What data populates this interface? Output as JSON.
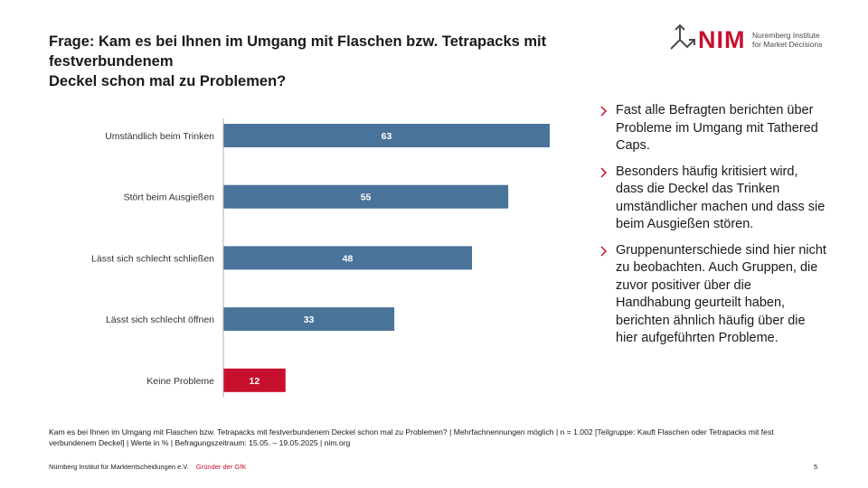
{
  "header": {
    "title_line1": "Frage: Kam es bei Ihnen im Umgang mit Flaschen bzw. Tetrapacks mit festverbundenem",
    "title_line2": "Deckel schon mal zu Problemen?"
  },
  "logo": {
    "wordmark": "NIM",
    "line1": "Nuremberg Institute",
    "line2": "for Market Decisions",
    "color": "#c8102e",
    "icon": "arrows-icon"
  },
  "chart_data": {
    "type": "bar",
    "orientation": "horizontal",
    "categories": [
      "Umständlich beim Trinken",
      "Stört beim Ausgießen",
      "Lässt sich schlecht schließen",
      "Lässt sich schlecht öffnen",
      "Keine Probleme"
    ],
    "values": [
      63,
      55,
      48,
      33,
      12
    ],
    "colors": [
      "#4a7399",
      "#4a7399",
      "#4a7399",
      "#4a7399",
      "#c8102e"
    ],
    "xlim": [
      0,
      100
    ],
    "data_labels": true,
    "axis_line": true,
    "grid": false,
    "legend": "none"
  },
  "bullets": [
    "Fast alle Befragten berichten über Probleme im Umgang mit Tathered Caps.",
    "Besonders häufig kritisiert wird, dass die Deckel das Trinken umständlicher machen und dass sie beim Ausgießen stören.",
    "Gruppenunterschiede sind hier nicht zu beobachten. Auch Gruppen, die zuvor positiver über die Handhabung geurteilt haben, berichten ähnlich häufig über die hier aufgeführten Probleme."
  ],
  "footnote": "Kam es bei Ihnen im Umgang mit Flaschen bzw. Tetrapacks mit festverbundenem Deckel schon mal zu Problemen? | Mehrfachnennungen möglich | n = 1.002 [Teilgruppe: Kauft Flaschen oder Tetrapacks mit fest verbundenem Deckel] | Werte in % | Befragungszeitraum: 15.05. – 19.05.2025 | nim.org",
  "footer": {
    "org": "Nürnberg Institut für Marktentscheidungen e.V.",
    "tagline": "Gründer der GfK",
    "page": "5"
  }
}
